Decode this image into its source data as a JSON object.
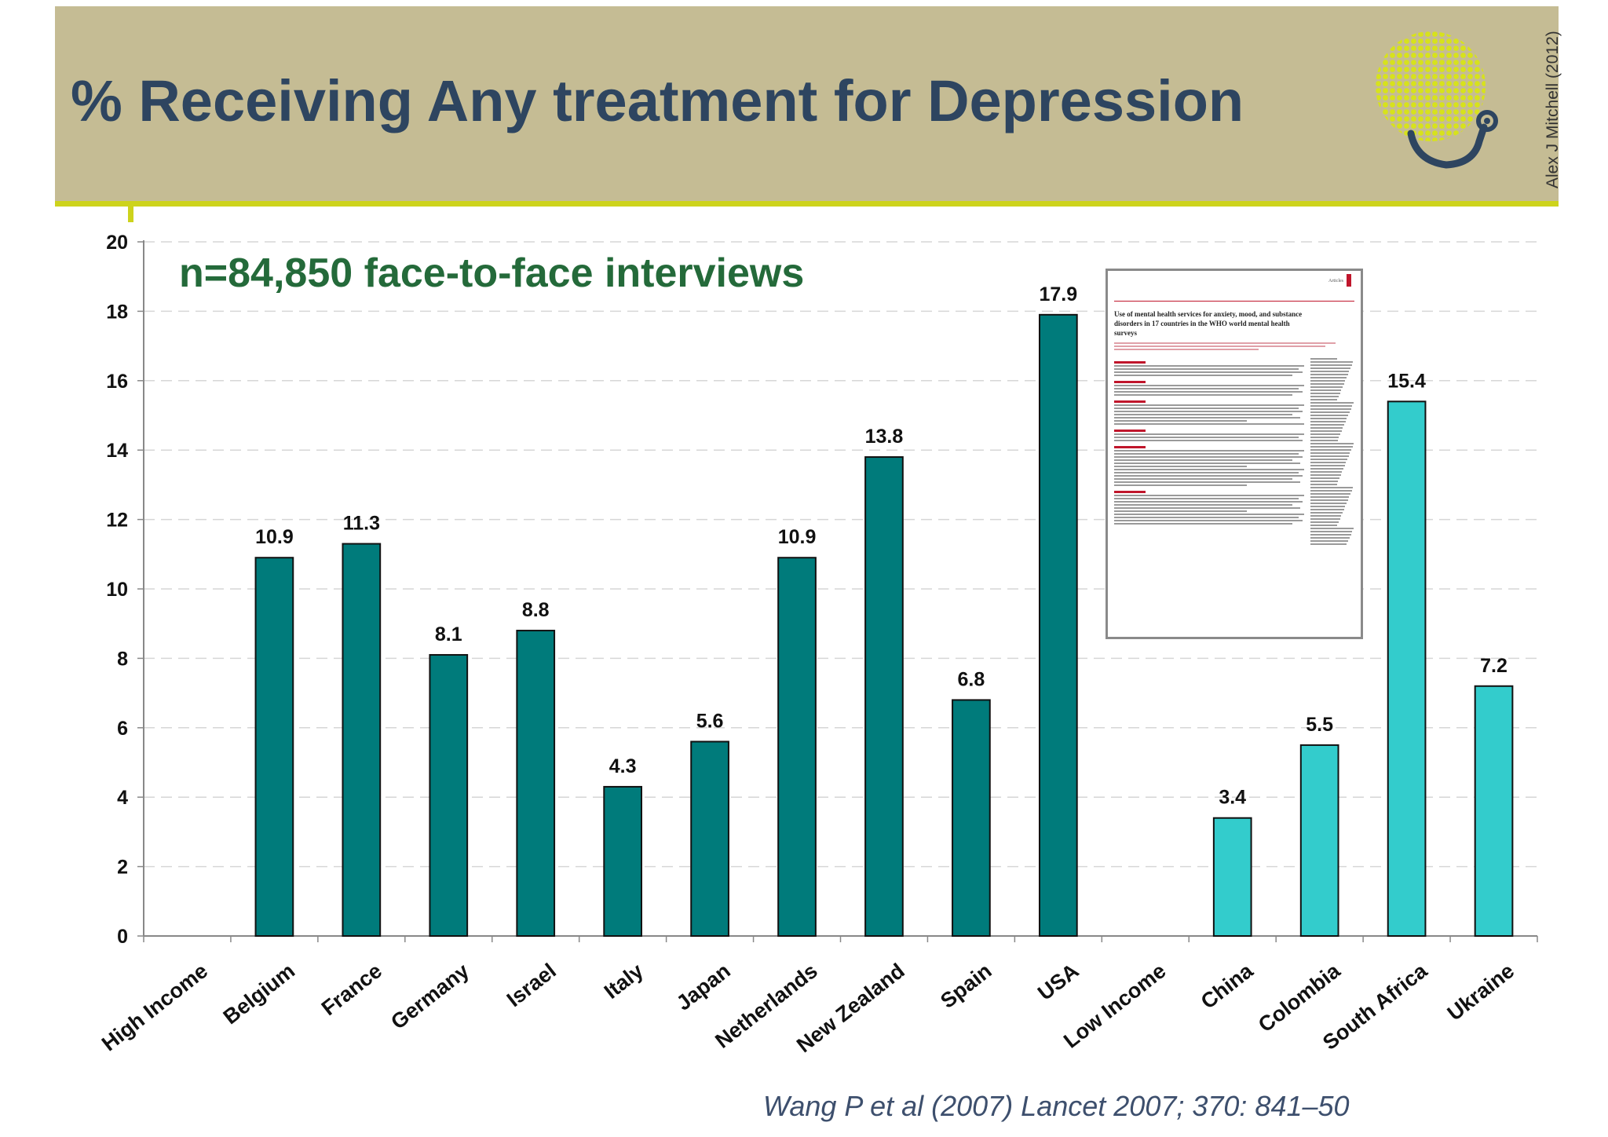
{
  "slide": {
    "title": "% Receiving Any treatment for Depression",
    "author": "Alex J Mitchell (2012)",
    "subtitle": "n=84,850 face-to-face interviews",
    "citation": "Wang P et al (2007) Lancet 2007; 370: 841–50"
  },
  "paper_thumbnail": {
    "section": "Articles",
    "title": "Use of mental health services for anxiety, mood, and substance disorders in 17 countries in the WHO world mental health surveys"
  },
  "colors": {
    "header_bg": "#c5bc94",
    "accent_line": "#cdd31c",
    "title": "#2e4560",
    "subtitle": "#246a3a",
    "high_income_bar": "#007b7b",
    "low_income_bar": "#33cccc"
  },
  "chart_data": {
    "type": "bar",
    "categories": [
      "High Income",
      "Belgium",
      "France",
      "Germany",
      "Israel",
      "Italy",
      "Japan",
      "Netherlands",
      "New Zealand",
      "Spain",
      "USA",
      "Low Income",
      "China",
      "Colombia",
      "South Africa",
      "Ukraine"
    ],
    "values": [
      null,
      10.9,
      11.3,
      8.1,
      8.8,
      4.3,
      5.6,
      10.9,
      13.8,
      6.8,
      17.9,
      null,
      3.4,
      5.5,
      15.4,
      7.2
    ],
    "data_labels": [
      "",
      "10.9",
      "11.3",
      "8.1",
      "8.8",
      "4.3",
      "5.6",
      "10.9",
      "13.8",
      "6.8",
      "17.9",
      "",
      "3.4",
      "5.5",
      "15.4",
      "7.2"
    ],
    "groups": [
      "high",
      "high",
      "high",
      "high",
      "high",
      "high",
      "high",
      "high",
      "high",
      "high",
      "high",
      "low",
      "low",
      "low",
      "low",
      "low"
    ],
    "title": "% Receiving Any treatment for Depression",
    "xlabel": "",
    "ylabel": "",
    "ylim": [
      0,
      20
    ],
    "yticks": [
      "0",
      "2",
      "4",
      "6",
      "8",
      "10",
      "12",
      "14",
      "16",
      "18",
      "20"
    ],
    "grid": true,
    "legend": "none"
  }
}
